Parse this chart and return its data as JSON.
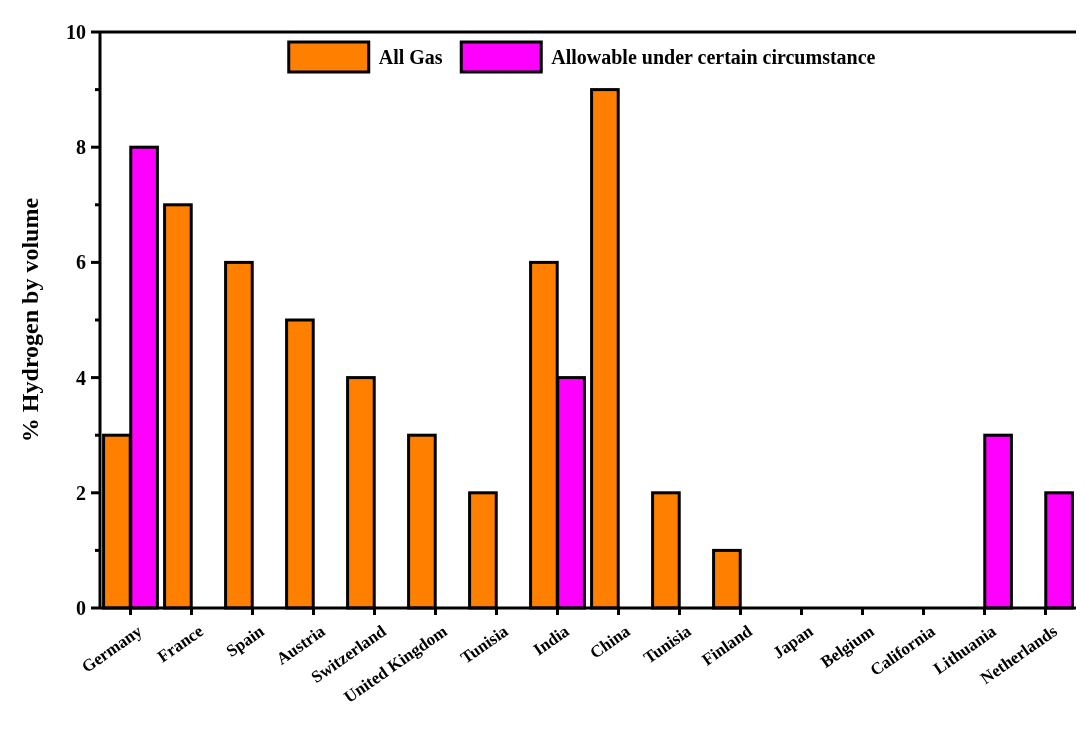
{
  "chart_data": {
    "type": "bar",
    "ylabel": "% Hydrogen by volume",
    "categories": [
      "Germany",
      "France",
      "Spain",
      "Austria",
      "Switzerland",
      "United Kingdom",
      "Tunisia",
      "India",
      "China",
      "Tunisia",
      "Finland",
      "Japan",
      "Belgium",
      "California",
      "Lithuania",
      "Netherlands"
    ],
    "series": [
      {
        "name": "All Gas",
        "color": "#ff8000",
        "values": [
          3,
          7,
          6,
          5,
          4,
          3,
          2,
          6,
          9,
          2,
          1,
          null,
          null,
          null,
          null,
          null
        ]
      },
      {
        "name": "Allowable under certain circumstance",
        "color": "#ff00ff",
        "values": [
          8,
          null,
          null,
          null,
          null,
          null,
          null,
          4,
          null,
          null,
          null,
          null,
          null,
          null,
          3,
          2
        ]
      }
    ],
    "ylim": [
      0,
      10
    ],
    "yticks": [
      0,
      2,
      4,
      6,
      8,
      10
    ],
    "grid": false,
    "legend": "top"
  }
}
